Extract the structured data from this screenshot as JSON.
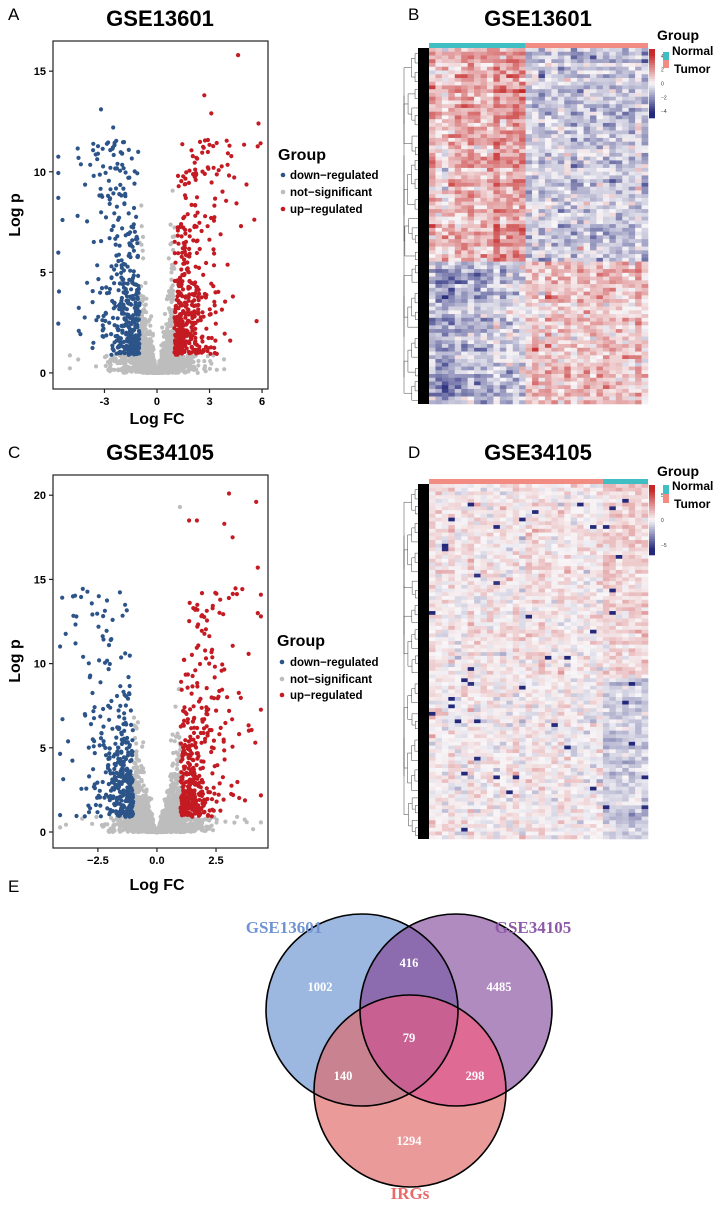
{
  "panel_labels": {
    "a": "A",
    "b": "B",
    "c": "C",
    "d": "D",
    "e": "E"
  },
  "colors": {
    "down": "#2c5489",
    "ns": "#bdbdbd",
    "up": "#c41a22",
    "normal": "#3fbfc4",
    "tumor": "#f28b82",
    "heat_high": "#c62828",
    "heat_low": "#23287a",
    "venn_gse13601": "#9db8e0",
    "venn_gse34105": "#b08bbf",
    "venn_irgs": "#eb9a9a",
    "venn_gse13601_label": "#6f93d2",
    "venn_gse34105_label": "#8e5aa8",
    "venn_irgs_label": "#e86a6a"
  },
  "chart_data": [
    {
      "id": "A",
      "type": "scatter",
      "title": "GSE13601",
      "xlabel": "Log FC",
      "ylabel": "Log p",
      "x_ticks": [
        "-3",
        "0",
        "3",
        "6"
      ],
      "x_tick_values": [
        -3,
        0,
        3,
        6
      ],
      "y_ticks": [
        "0",
        "5",
        "10",
        "15"
      ],
      "y_tick_values": [
        0,
        5,
        10,
        15
      ],
      "xlim": [
        -5.94,
        6.34
      ],
      "ylim": [
        -0.8,
        16.5
      ],
      "logfc_threshold": 1,
      "legend": {
        "title": "Group",
        "position": "right",
        "entries": [
          "down−regulated",
          "not−significant",
          "up−regulated"
        ]
      },
      "notable_points": [
        {
          "x": 4.63,
          "y": 15.8,
          "group": "up"
        },
        {
          "x": 5.8,
          "y": 12.4,
          "group": "up"
        },
        {
          "x": 2.7,
          "y": 13.8,
          "group": "up"
        },
        {
          "x": 3.1,
          "y": 12.9,
          "group": "up"
        },
        {
          "x": -3.2,
          "y": 13.1,
          "group": "down"
        },
        {
          "x": -2.5,
          "y": 12.2,
          "group": "down"
        },
        {
          "x": -5.4,
          "y": 7.6,
          "group": "down"
        },
        {
          "x": 4.8,
          "y": 7.3,
          "group": "up"
        }
      ]
    },
    {
      "id": "B",
      "type": "heatmap",
      "title": "GSE13601",
      "annotation": {
        "title": "Group",
        "groups": [
          "Normal",
          "Tumor"
        ],
        "column_order": [
          "Normal",
          "Tumor"
        ],
        "normal_fraction": 0.45
      },
      "colorbar_ticks": [
        "4",
        "2",
        "0",
        "−2",
        "−4"
      ],
      "colorbar_range": [
        -5,
        5
      ]
    },
    {
      "id": "C",
      "type": "scatter",
      "title": "GSE34105",
      "xlabel": "Log FC",
      "ylabel": "Log p",
      "x_ticks": [
        "−2.5",
        "0.0",
        "2.5"
      ],
      "x_tick_values": [
        -2.5,
        0,
        2.5
      ],
      "y_ticks": [
        "0",
        "5",
        "10",
        "15",
        "20"
      ],
      "y_tick_values": [
        0,
        5,
        10,
        15,
        20
      ],
      "xlim": [
        -4.4,
        4.7
      ],
      "ylim": [
        -0.95,
        21.2
      ],
      "logfc_threshold": 1,
      "legend": {
        "title": "Group",
        "position": "right",
        "entries": [
          "down−regulated",
          "not−significant",
          "up−regulated"
        ]
      },
      "notable_points": [
        {
          "x": 3.05,
          "y": 20.1,
          "group": "up"
        },
        {
          "x": 4.2,
          "y": 19.6,
          "group": "up"
        },
        {
          "x": 0.97,
          "y": 19.3,
          "group": "ns"
        },
        {
          "x": 1.36,
          "y": 18.5,
          "group": "up"
        },
        {
          "x": 1.69,
          "y": 18.5,
          "group": "up"
        },
        {
          "x": 2.85,
          "y": 18.3,
          "group": "up"
        },
        {
          "x": 3.2,
          "y": 17.5,
          "group": "up"
        },
        {
          "x": 4.27,
          "y": 15.7,
          "group": "up"
        },
        {
          "x": 4.27,
          "y": 13.0,
          "group": "up"
        },
        {
          "x": -2.46,
          "y": 14.0,
          "group": "down"
        },
        {
          "x": -2.03,
          "y": 11.1,
          "group": "down"
        },
        {
          "x": -4.0,
          "y": 6.7,
          "group": "down"
        }
      ]
    },
    {
      "id": "D",
      "type": "heatmap",
      "title": "GSE34105",
      "annotation": {
        "title": "Group",
        "groups": [
          "Normal",
          "Tumor"
        ],
        "column_order": [
          "Tumor",
          "Normal"
        ],
        "normal_fraction": 0.21
      },
      "colorbar_ticks": [
        "5",
        "0",
        "−5"
      ],
      "colorbar_range": [
        -7,
        7
      ]
    },
    {
      "id": "E",
      "type": "venn",
      "sets": [
        "GSE13601",
        "GSE34105",
        "IRGs"
      ],
      "regions": {
        "GSE13601_only": "1002",
        "GSE34105_only": "4485",
        "IRGs_only": "1294",
        "GSE13601_GSE34105": "416",
        "GSE13601_IRGs": "140",
        "GSE34105_IRGs": "298",
        "all_three": "79"
      }
    }
  ]
}
